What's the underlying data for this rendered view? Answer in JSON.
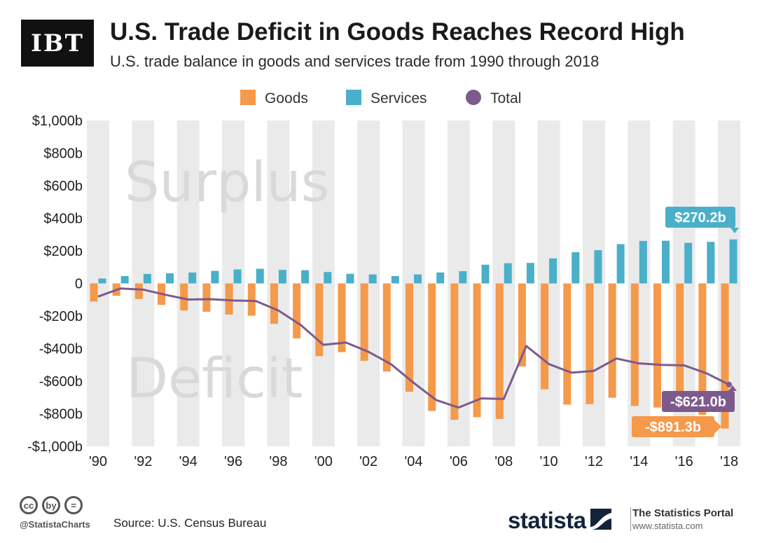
{
  "header": {
    "logo_text": "IBT",
    "title": "U.S. Trade Deficit in Goods Reaches Record High",
    "subtitle": "U.S. trade balance in goods and services trade from 1990 through 2018"
  },
  "colors": {
    "goods": "#f5994a",
    "services": "#4aafc9",
    "total": "#7d5a8c",
    "band": "#eaeaea",
    "watermark": "#d9d9d9"
  },
  "chart_data": {
    "type": "bar",
    "title": "U.S. Trade Deficit in Goods Reaches Record High",
    "ylim": [
      -1000,
      1000
    ],
    "yticks": [
      1000,
      800,
      600,
      400,
      200,
      0,
      -200,
      -400,
      -600,
      -800,
      -1000
    ],
    "ytick_labels": [
      "$1,000b",
      "$800b",
      "$600b",
      "$400b",
      "$200b",
      "0",
      "-$200b",
      "-$400b",
      "-$600b",
      "-$800b",
      "-$1,000b"
    ],
    "years": [
      1990,
      1991,
      1992,
      1993,
      1994,
      1995,
      1996,
      1997,
      1998,
      1999,
      2000,
      2001,
      2002,
      2003,
      2004,
      2005,
      2006,
      2007,
      2008,
      2009,
      2010,
      2011,
      2012,
      2013,
      2014,
      2015,
      2016,
      2017,
      2018
    ],
    "xtick_labels": [
      "'90",
      "'92",
      "'94",
      "'96",
      "'98",
      "'00",
      "'02",
      "'04",
      "'06",
      "'08",
      "'10",
      "'12",
      "'14",
      "'16",
      "'18"
    ],
    "legend": [
      "Goods",
      "Services",
      "Total"
    ],
    "series": [
      {
        "name": "Goods",
        "type": "bar",
        "values": [
          -111,
          -76,
          -96,
          -132,
          -166,
          -174,
          -191,
          -198,
          -248,
          -337,
          -447,
          -422,
          -475,
          -541,
          -665,
          -783,
          -837,
          -821,
          -832,
          -510,
          -650,
          -744,
          -741,
          -702,
          -752,
          -762,
          -752,
          -807,
          -891.3
        ]
      },
      {
        "name": "Services",
        "type": "bar",
        "values": [
          30,
          45,
          58,
          62,
          67,
          77,
          86,
          90,
          83,
          81,
          70,
          59,
          55,
          45,
          55,
          67,
          75,
          115,
          124,
          126,
          154,
          192,
          204,
          241,
          261,
          262,
          249,
          255,
          270.2
        ]
      },
      {
        "name": "Total",
        "type": "line",
        "values": [
          -81,
          -31,
          -38,
          -70,
          -99,
          -97,
          -105,
          -108,
          -166,
          -256,
          -377,
          -363,
          -420,
          -496,
          -610,
          -716,
          -762,
          -706,
          -709,
          -384,
          -495,
          -548,
          -537,
          -461,
          -491,
          -500,
          -503,
          -552,
          -621.0
        ]
      }
    ],
    "watermarks": {
      "top": "Surplus",
      "bottom": "Deficit"
    },
    "annotations": [
      {
        "series": "Services",
        "year": 2018,
        "label": "$270.2b"
      },
      {
        "series": "Total",
        "year": 2018,
        "label": "-$621.0b"
      },
      {
        "series": "Goods",
        "year": 2018,
        "label": "-$891.3b"
      }
    ]
  },
  "footer": {
    "cc_icons": [
      "cc",
      "by",
      "="
    ],
    "cc_icon_names": [
      "cc-icon",
      "attribution-icon",
      "no-derivatives-icon"
    ],
    "handle": "@StatistaCharts",
    "source": "Source: U.S. Census Bureau",
    "brand": "statista",
    "portal_title": "The Statistics Portal",
    "portal_url": "www.statista.com"
  }
}
